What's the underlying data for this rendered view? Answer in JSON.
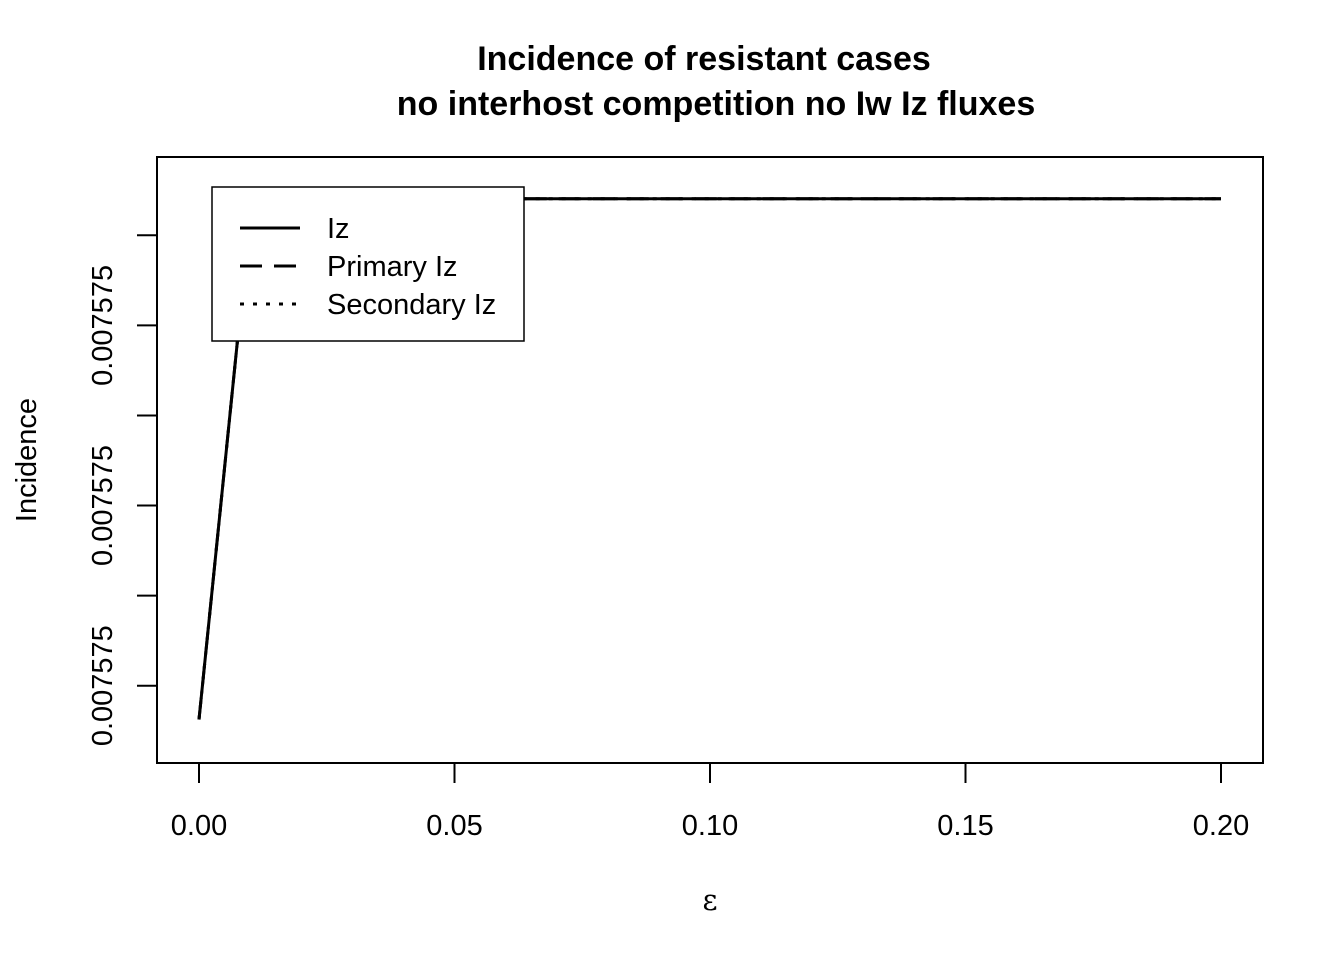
{
  "chart_data": {
    "type": "line",
    "title": "Incidence of resistant cases",
    "subtitle": "no interhost competition no Iw Iz fluxes",
    "xlabel": "ε",
    "ylabel": "Incidence",
    "xlim": [
      0,
      0.2
    ],
    "ylim": [
      0,
      1
    ],
    "x_ticks": [
      {
        "value": 0.0,
        "label": "0.00"
      },
      {
        "value": 0.05,
        "label": "0.05"
      },
      {
        "value": 0.1,
        "label": "0.10"
      },
      {
        "value": 0.15,
        "label": "0.15"
      },
      {
        "value": 0.2,
        "label": "0.20"
      }
    ],
    "y_ticks": [
      {
        "value": 0.1,
        "label": "0.007575"
      },
      {
        "value": 0.26,
        "label": ""
      },
      {
        "value": 0.42,
        "label": "0.007575"
      },
      {
        "value": 0.58,
        "label": ""
      },
      {
        "value": 0.74,
        "label": "0.007575"
      },
      {
        "value": 0.9,
        "label": ""
      }
    ],
    "grid": false,
    "legend": {
      "position": "top-left",
      "entries": [
        {
          "name": "Iz",
          "linestyle": "solid"
        },
        {
          "name": "Primary Iz",
          "linestyle": "dashed"
        },
        {
          "name": "Secondary Iz",
          "linestyle": "dotted"
        }
      ]
    },
    "x": [
      0.0,
      0.01,
      0.02,
      0.03,
      0.04,
      0.05,
      0.06,
      0.07,
      0.08,
      0.09,
      0.1,
      0.11,
      0.12,
      0.13,
      0.14,
      0.15,
      0.16,
      0.17,
      0.18,
      0.19,
      0.2
    ],
    "series": [
      {
        "name": "Iz",
        "linestyle": "solid",
        "values": [
          0.04,
          0.934,
          0.955,
          0.962,
          0.964,
          0.965,
          0.965,
          0.965,
          0.965,
          0.965,
          0.965,
          0.965,
          0.965,
          0.965,
          0.965,
          0.965,
          0.965,
          0.965,
          0.965,
          0.965,
          0.965
        ]
      },
      {
        "name": "Primary Iz",
        "linestyle": "dashed",
        "values": [
          0.04,
          0.934,
          0.955,
          0.962,
          0.964,
          0.965,
          0.965,
          0.965,
          0.965,
          0.965,
          0.965,
          0.965,
          0.965,
          0.965,
          0.965,
          0.965,
          0.965,
          0.965,
          0.965,
          0.965,
          0.965
        ]
      },
      {
        "name": "Secondary Iz",
        "linestyle": "dotted",
        "values": [
          0.04,
          0.934,
          0.955,
          0.962,
          0.964,
          0.965,
          0.965,
          0.965,
          0.965,
          0.965,
          0.965,
          0.965,
          0.965,
          0.965,
          0.965,
          0.965,
          0.965,
          0.965,
          0.965,
          0.965,
          0.965
        ]
      }
    ]
  }
}
